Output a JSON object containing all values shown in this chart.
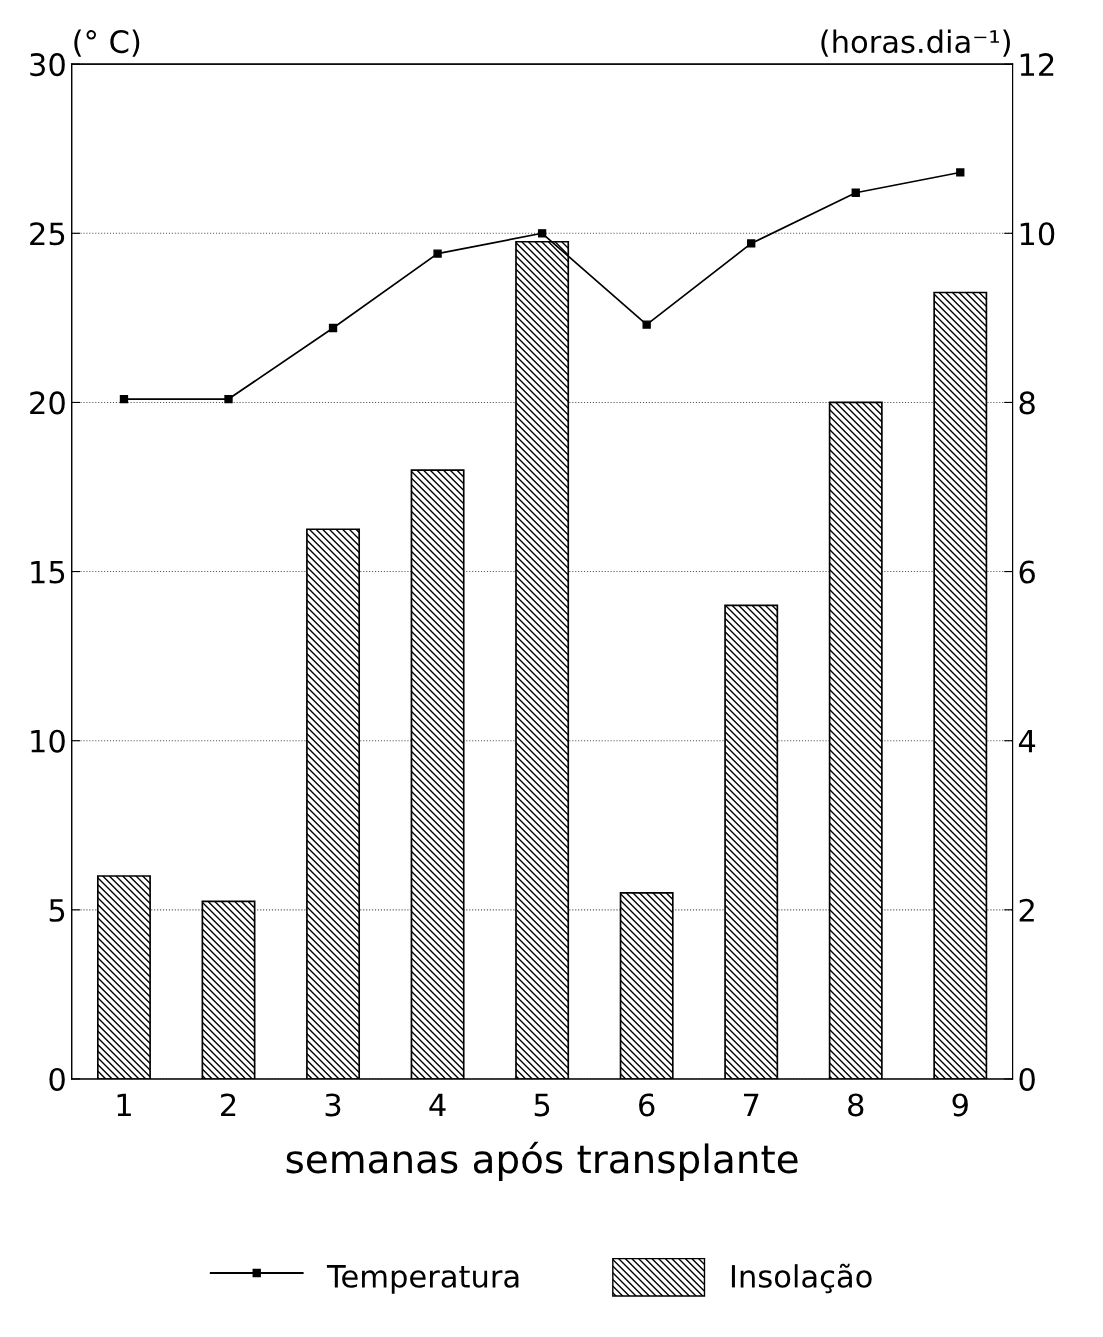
{
  "chart_data": {
    "type": "bar",
    "xlabel": "semanas após transplante",
    "ylabel": "(° C)",
    "y2label": "(horas.dia⁻¹)",
    "categories": [
      "1",
      "2",
      "3",
      "4",
      "5",
      "6",
      "7",
      "8",
      "9"
    ],
    "series": [
      {
        "name": "Temperatura",
        "type": "line",
        "color": "#000000",
        "marker": "square",
        "values": [
          20.1,
          20.1,
          22.2,
          24.4,
          25.0,
          22.3,
          24.7,
          26.2,
          26.8
        ]
      },
      {
        "name": "Insolação",
        "axis": "y2",
        "color": "#000000",
        "values": [
          2.4,
          2.1,
          6.5,
          7.2,
          9.9,
          2.2,
          5.6,
          8.0,
          9.3
        ]
      }
    ],
    "ylim": [
      0,
      30
    ],
    "yticks": [
      0,
      5,
      10,
      15,
      20,
      25,
      30
    ],
    "y2lim": [
      0,
      12
    ],
    "y2ticks": [
      0,
      2,
      4,
      6,
      8,
      10,
      12
    ],
    "grid": "y",
    "legend": "bottom"
  }
}
